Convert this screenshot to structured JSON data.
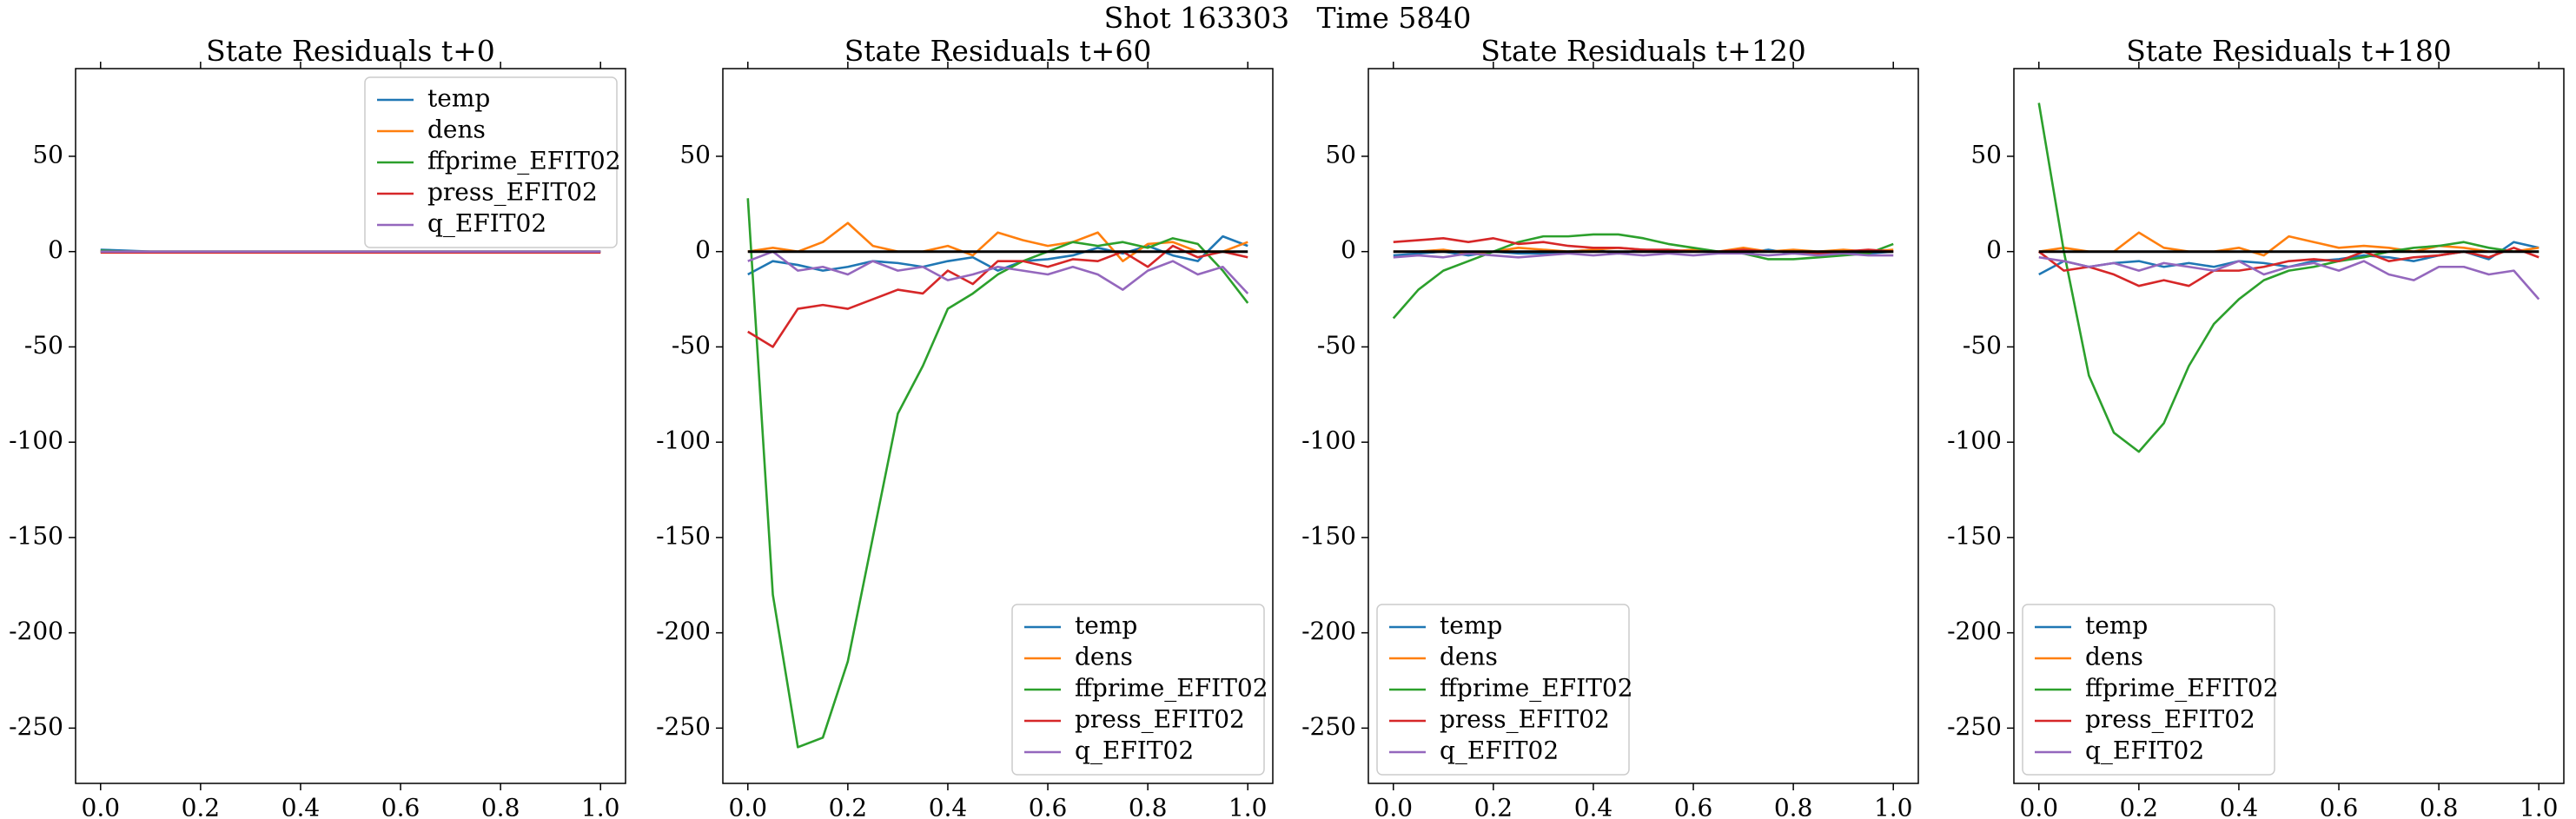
{
  "title": "Shot 163303   Time 5840",
  "chart_data": [
    {
      "type": "line",
      "title": "State Residuals t+0",
      "legend": "upper right",
      "xlim": [
        -0.05,
        1.05
      ],
      "ylim": [
        -279,
        96
      ],
      "xticks": [
        {
          "value": 0,
          "label": "0.0"
        },
        0.2,
        0.4,
        0.6,
        0.8,
        {
          "value": 1,
          "label": "1.0"
        }
      ],
      "yticks": [
        -250,
        -200,
        -150,
        -100,
        -50,
        0,
        50
      ],
      "x": [
        0,
        0.05,
        0.1,
        0.15,
        0.2,
        0.25,
        0.3,
        0.35,
        0.4,
        0.45,
        0.5,
        0.55,
        0.6,
        0.65,
        0.7,
        0.75,
        0.8,
        0.85,
        0.9,
        0.95,
        1
      ],
      "series": [
        {
          "name": "temp",
          "color": "#1f77b4",
          "values": [
            1,
            0.5,
            0,
            0,
            0,
            0,
            0,
            0,
            0,
            0,
            0,
            0,
            0,
            0,
            0,
            0,
            0,
            0,
            0,
            0,
            0
          ]
        },
        {
          "name": "dens",
          "color": "#ff7f0e",
          "values": [
            0,
            0,
            0,
            0,
            0,
            0,
            0,
            0,
            0,
            0,
            0,
            0,
            0,
            0,
            0,
            0,
            0,
            0,
            0,
            0,
            0
          ]
        },
        {
          "name": "ffprime_EFIT02",
          "color": "#2ca02c",
          "values": [
            0.5,
            0,
            0,
            0,
            0,
            0,
            0,
            0,
            0,
            0,
            0,
            0,
            0,
            0,
            0,
            0,
            0,
            0,
            0,
            0,
            0
          ]
        },
        {
          "name": "press_EFIT02",
          "color": "#d62728",
          "values": [
            -0.5,
            -0.5,
            -0.5,
            -0.5,
            -0.5,
            -0.5,
            -0.5,
            -0.5,
            -0.5,
            -0.5,
            -0.5,
            -0.5,
            -0.5,
            -0.5,
            -0.5,
            -0.5,
            -0.5,
            -0.5,
            -0.5,
            -0.5,
            -0.5
          ]
        },
        {
          "name": "q_EFIT02",
          "color": "#9467bd",
          "values": [
            0,
            0,
            0,
            0,
            0,
            0,
            0,
            0,
            0,
            0,
            0,
            0,
            0,
            0,
            0,
            0,
            0,
            0,
            0,
            0,
            0
          ]
        }
      ]
    },
    {
      "type": "line",
      "title": "State Residuals t+60",
      "legend": "lower right",
      "xlim": [
        -0.05,
        1.05
      ],
      "ylim": [
        -279,
        96
      ],
      "xticks": [
        {
          "value": 0,
          "label": "0.0"
        },
        0.2,
        0.4,
        0.6,
        0.8,
        {
          "value": 1,
          "label": "1.0"
        }
      ],
      "yticks": [
        -250,
        -200,
        -150,
        -100,
        -50,
        0,
        50
      ],
      "hline": {
        "value": 0,
        "color": "#000000"
      },
      "x": [
        0,
        0.05,
        0.1,
        0.15,
        0.2,
        0.25,
        0.3,
        0.35,
        0.4,
        0.45,
        0.5,
        0.55,
        0.6,
        0.65,
        0.7,
        0.75,
        0.8,
        0.85,
        0.9,
        0.95,
        1
      ],
      "series": [
        {
          "name": "temp",
          "color": "#1f77b4",
          "values": [
            -12,
            -5,
            -7,
            -10,
            -8,
            -5,
            -6,
            -8,
            -5,
            -3,
            -10,
            -5,
            -4,
            -2,
            2,
            -1,
            3,
            -2,
            -5,
            8,
            3
          ]
        },
        {
          "name": "dens",
          "color": "#ff7f0e",
          "values": [
            0,
            2,
            0,
            5,
            15,
            3,
            0,
            0,
            3,
            -2,
            10,
            6,
            3,
            5,
            10,
            -5,
            4,
            5,
            0,
            0,
            5
          ]
        },
        {
          "name": "ffprime_EFIT02",
          "color": "#2ca02c",
          "values": [
            28,
            -180,
            -260,
            -255,
            -215,
            -150,
            -85,
            -60,
            -30,
            -22,
            -12,
            -5,
            0,
            5,
            3,
            5,
            2,
            7,
            4,
            -10,
            -27
          ]
        },
        {
          "name": "press_EFIT02",
          "color": "#d62728",
          "values": [
            -42,
            -50,
            -30,
            -28,
            -30,
            -25,
            -20,
            -22,
            -10,
            -17,
            -5,
            -5,
            -8,
            -4,
            -5,
            0,
            -8,
            3,
            -3,
            0,
            -3
          ]
        },
        {
          "name": "q_EFIT02",
          "color": "#9467bd",
          "values": [
            -5,
            0,
            -10,
            -8,
            -12,
            -5,
            -10,
            -8,
            -15,
            -12,
            -8,
            -10,
            -12,
            -8,
            -12,
            -20,
            -10,
            -5,
            -12,
            -8,
            -22
          ]
        }
      ]
    },
    {
      "type": "line",
      "title": "State Residuals t+120",
      "legend": "lower left",
      "xlim": [
        -0.05,
        1.05
      ],
      "ylim": [
        -279,
        96
      ],
      "xticks": [
        {
          "value": 0,
          "label": "0.0"
        },
        0.2,
        0.4,
        0.6,
        0.8,
        {
          "value": 1,
          "label": "1.0"
        }
      ],
      "yticks": [
        -250,
        -200,
        -150,
        -100,
        -50,
        0,
        50
      ],
      "hline": {
        "value": 0,
        "color": "#000000"
      },
      "x": [
        0,
        0.05,
        0.1,
        0.15,
        0.2,
        0.25,
        0.3,
        0.35,
        0.4,
        0.45,
        0.5,
        0.55,
        0.6,
        0.65,
        0.7,
        0.75,
        0.8,
        0.85,
        0.9,
        0.95,
        1
      ],
      "series": [
        {
          "name": "temp",
          "color": "#1f77b4",
          "values": [
            -2,
            -1,
            0,
            -2,
            0,
            -1,
            -1,
            0,
            1,
            -1,
            1,
            0,
            0,
            0,
            -1,
            1,
            -1,
            0,
            0,
            -1,
            0
          ]
        },
        {
          "name": "dens",
          "color": "#ff7f0e",
          "values": [
            0,
            0,
            1,
            -1,
            0,
            2,
            1,
            0,
            1,
            2,
            1,
            0,
            1,
            0,
            2,
            0,
            1,
            0,
            1,
            0,
            1
          ]
        },
        {
          "name": "ffprime_EFIT02",
          "color": "#2ca02c",
          "values": [
            -35,
            -20,
            -10,
            -5,
            0,
            5,
            8,
            8,
            9,
            9,
            7,
            4,
            2,
            0,
            -1,
            -4,
            -4,
            -3,
            -2,
            -1,
            4
          ]
        },
        {
          "name": "press_EFIT02",
          "color": "#d62728",
          "values": [
            5,
            6,
            7,
            5,
            7,
            4,
            5,
            3,
            2,
            2,
            1,
            1,
            0,
            0,
            1,
            0,
            0,
            -1,
            0,
            1,
            0
          ]
        },
        {
          "name": "q_EFIT02",
          "color": "#9467bd",
          "values": [
            -3,
            -2,
            -3,
            -1,
            -2,
            -3,
            -2,
            -1,
            -2,
            -1,
            -2,
            -1,
            -2,
            -1,
            -1,
            -2,
            -1,
            -2,
            -1,
            -2,
            -2
          ]
        }
      ]
    },
    {
      "type": "line",
      "title": "State Residuals t+180",
      "legend": "lower left",
      "xlim": [
        -0.05,
        1.05
      ],
      "ylim": [
        -279,
        96
      ],
      "xticks": [
        {
          "value": 0,
          "label": "0.0"
        },
        0.2,
        0.4,
        0.6,
        0.8,
        {
          "value": 1,
          "label": "1.0"
        }
      ],
      "yticks": [
        -250,
        -200,
        -150,
        -100,
        -50,
        0,
        50
      ],
      "hline": {
        "value": 0,
        "color": "#000000"
      },
      "x": [
        0,
        0.05,
        0.1,
        0.15,
        0.2,
        0.25,
        0.3,
        0.35,
        0.4,
        0.45,
        0.5,
        0.55,
        0.6,
        0.65,
        0.7,
        0.75,
        0.8,
        0.85,
        0.9,
        0.95,
        1
      ],
      "series": [
        {
          "name": "temp",
          "color": "#1f77b4",
          "values": [
            -12,
            -5,
            -8,
            -6,
            -5,
            -8,
            -6,
            -8,
            -5,
            -6,
            -8,
            -5,
            -4,
            -2,
            -3,
            -5,
            -2,
            0,
            -4,
            5,
            2
          ]
        },
        {
          "name": "dens",
          "color": "#ff7f0e",
          "values": [
            0,
            2,
            0,
            0,
            10,
            2,
            0,
            0,
            2,
            -2,
            8,
            5,
            2,
            3,
            2,
            0,
            3,
            2,
            0,
            0,
            2
          ]
        },
        {
          "name": "ffprime_EFIT02",
          "color": "#2ca02c",
          "values": [
            78,
            0,
            -65,
            -95,
            -105,
            -90,
            -60,
            -38,
            -25,
            -15,
            -10,
            -8,
            -5,
            -3,
            0,
            2,
            3,
            5,
            2,
            0,
            0
          ]
        },
        {
          "name": "press_EFIT02",
          "color": "#d62728",
          "values": [
            0,
            -10,
            -8,
            -12,
            -18,
            -15,
            -18,
            -10,
            -10,
            -8,
            -5,
            -4,
            -5,
            0,
            -5,
            -3,
            -2,
            0,
            -3,
            2,
            -3
          ]
        },
        {
          "name": "q_EFIT02",
          "color": "#9467bd",
          "values": [
            -3,
            -5,
            -8,
            -6,
            -10,
            -6,
            -8,
            -10,
            -5,
            -12,
            -8,
            -6,
            -10,
            -5,
            -12,
            -15,
            -8,
            -8,
            -12,
            -10,
            -25
          ]
        }
      ]
    }
  ]
}
